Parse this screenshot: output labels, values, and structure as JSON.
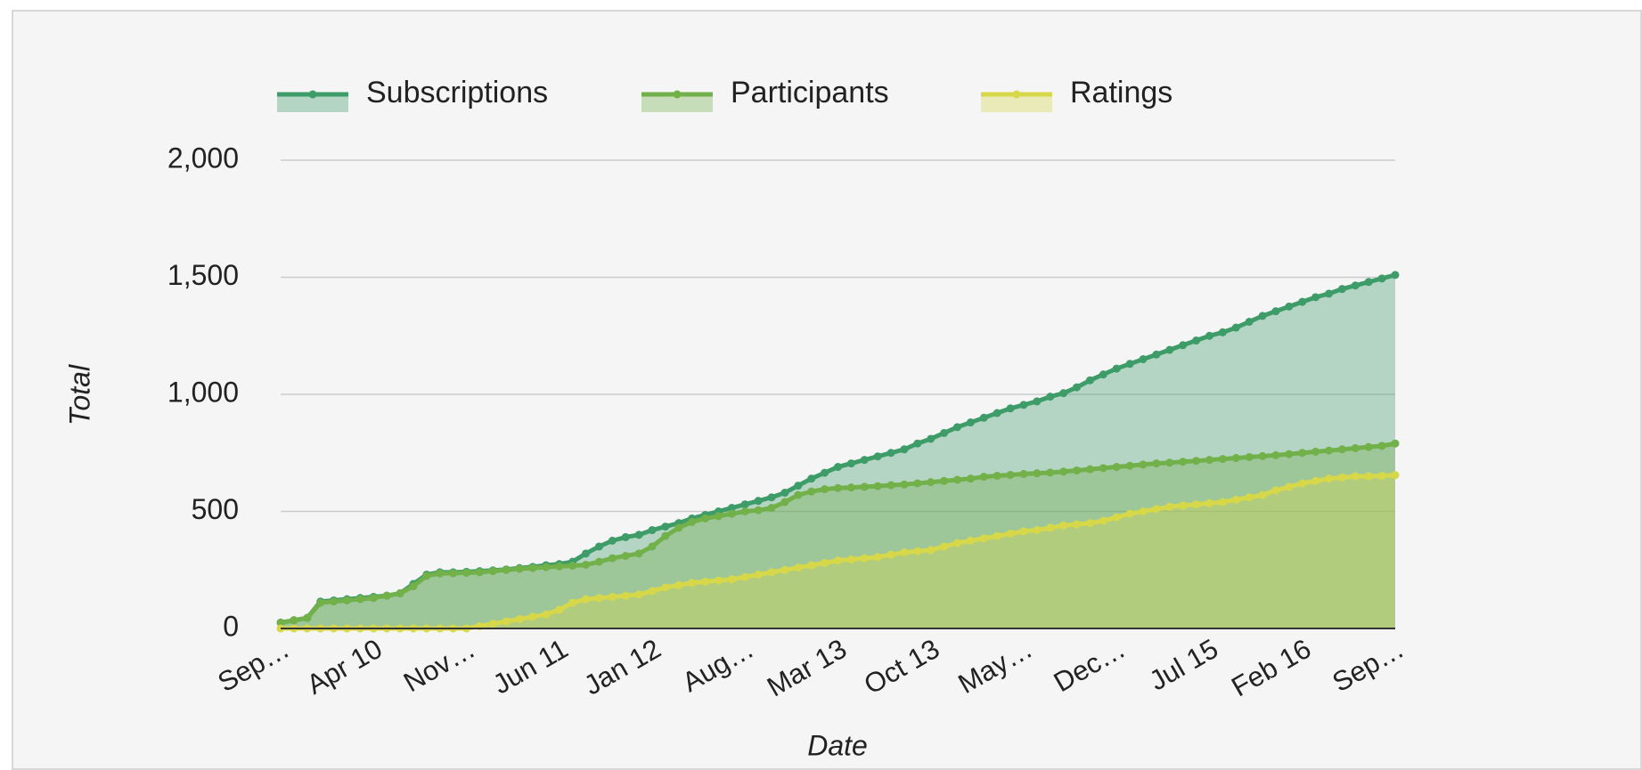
{
  "chart_data": {
    "type": "area",
    "x_label": "Date",
    "y_label": "Total",
    "categories": [
      "Sep…",
      null,
      null,
      null,
      null,
      null,
      null,
      "Apr 10",
      null,
      null,
      null,
      null,
      null,
      null,
      "Nov…",
      null,
      null,
      null,
      null,
      null,
      null,
      "Jun 11",
      null,
      null,
      null,
      null,
      null,
      null,
      "Jan 12",
      null,
      null,
      null,
      null,
      null,
      null,
      "Aug…",
      null,
      null,
      null,
      null,
      null,
      null,
      "Mar 13",
      null,
      null,
      null,
      null,
      null,
      null,
      "Oct 13",
      null,
      null,
      null,
      null,
      null,
      null,
      "May…",
      null,
      null,
      null,
      null,
      null,
      null,
      "Dec…",
      null,
      null,
      null,
      null,
      null,
      null,
      "Jul 15",
      null,
      null,
      null,
      null,
      null,
      null,
      "Feb 16",
      null,
      null,
      null,
      null,
      null,
      null,
      "Sep…"
    ],
    "series": [
      {
        "name": "Subscriptions",
        "color": "#3d9c68",
        "values": [
          25,
          35,
          45,
          115,
          120,
          125,
          130,
          135,
          140,
          150,
          190,
          230,
          240,
          240,
          242,
          245,
          248,
          252,
          258,
          263,
          270,
          275,
          285,
          320,
          350,
          375,
          390,
          400,
          420,
          435,
          450,
          470,
          485,
          500,
          515,
          530,
          545,
          560,
          580,
          610,
          640,
          665,
          690,
          705,
          720,
          735,
          750,
          765,
          790,
          810,
          835,
          860,
          880,
          900,
          920,
          940,
          955,
          970,
          990,
          1005,
          1030,
          1060,
          1085,
          1110,
          1130,
          1150,
          1170,
          1190,
          1210,
          1230,
          1250,
          1265,
          1285,
          1310,
          1335,
          1355,
          1375,
          1395,
          1415,
          1430,
          1450,
          1465,
          1480,
          1495,
          1510
        ]
      },
      {
        "name": "Participants",
        "color": "#72b04a",
        "values": [
          25,
          35,
          45,
          110,
          115,
          120,
          125,
          130,
          140,
          150,
          180,
          225,
          235,
          236,
          238,
          240,
          245,
          250,
          255,
          258,
          262,
          265,
          268,
          272,
          285,
          300,
          310,
          320,
          350,
          395,
          430,
          455,
          470,
          480,
          490,
          500,
          505,
          515,
          540,
          570,
          585,
          595,
          600,
          602,
          605,
          608,
          612,
          615,
          620,
          625,
          630,
          635,
          640,
          648,
          652,
          656,
          660,
          663,
          666,
          670,
          675,
          680,
          685,
          690,
          695,
          700,
          705,
          708,
          712,
          716,
          720,
          724,
          728,
          732,
          736,
          740,
          745,
          750,
          755,
          760,
          765,
          770,
          775,
          780,
          790
        ]
      },
      {
        "name": "Ratings",
        "color": "#d6d84a",
        "values": [
          0,
          0,
          0,
          0,
          0,
          0,
          0,
          0,
          0,
          0,
          0,
          0,
          0,
          0,
          0,
          10,
          20,
          30,
          40,
          50,
          60,
          80,
          110,
          125,
          130,
          135,
          140,
          145,
          160,
          175,
          185,
          195,
          200,
          205,
          210,
          220,
          230,
          240,
          250,
          260,
          270,
          280,
          290,
          295,
          300,
          305,
          315,
          325,
          330,
          335,
          350,
          365,
          375,
          385,
          395,
          405,
          415,
          420,
          430,
          440,
          445,
          450,
          460,
          475,
          490,
          500,
          510,
          520,
          525,
          530,
          535,
          540,
          550,
          560,
          570,
          590,
          605,
          620,
          630,
          640,
          645,
          650,
          650,
          652,
          655
        ]
      }
    ],
    "ylim": [
      0,
      2000
    ],
    "yticks": [
      0,
      500,
      {
        "value": 1000,
        "label": "1,000"
      },
      {
        "value": 1500,
        "label": "1,500"
      },
      {
        "value": 2000,
        "label": "2,000"
      }
    ],
    "grid": true,
    "legend": "top"
  }
}
